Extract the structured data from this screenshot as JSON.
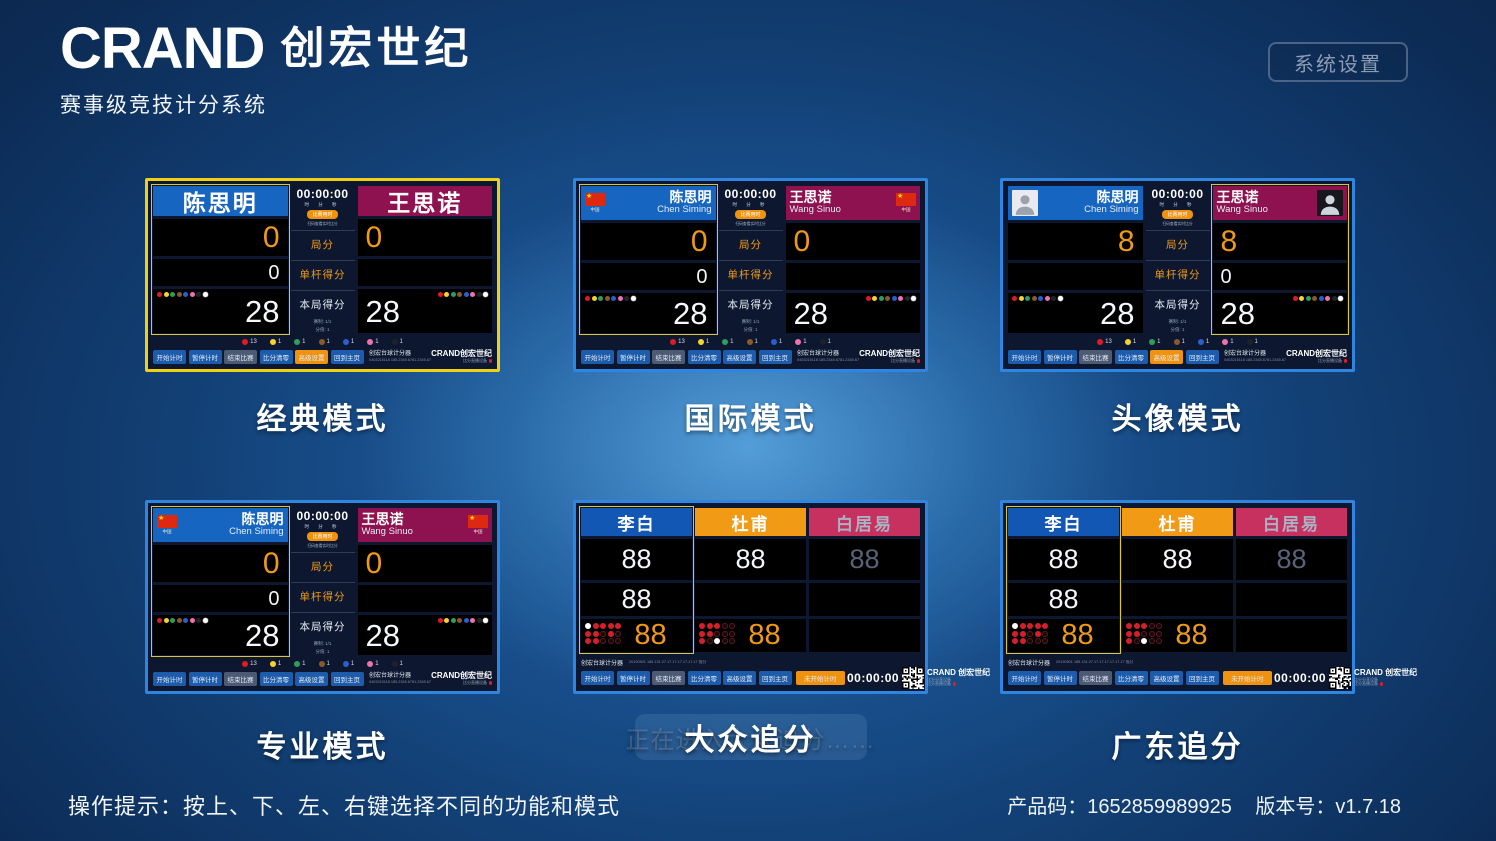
{
  "header": {
    "brand_en": "CRAND",
    "brand_cn": "创宏世纪",
    "subtitle": "赛事级竞技计分系统",
    "settings_button": "系统设置"
  },
  "footer": {
    "hint": "操作提示：按上、下、左、右键选择不同的功能和模式",
    "product_code": "产品码：1652859989925",
    "version": "版本号：v1.7.18"
  },
  "colors": {
    "accent_yellow": "#efd012",
    "accent_blue": "#2e86e0",
    "header_blue": "#1357b5",
    "header_crimson": "#8e1150",
    "header_orange": "#f09a16",
    "header_pink": "#c7315f",
    "score_orange": "#ef9a16",
    "button_blue": "#1d5cab",
    "button_grey": "#4d5a74",
    "button_highlight": "#ef9210"
  },
  "scoreboard_buttons": [
    "开始计时",
    "暂停计时",
    "结束比赛",
    "比分清零",
    "高级设置",
    "回到主页"
  ],
  "mini_balls": [
    "#e01b24",
    "#f6d32d",
    "#2ca05a",
    "#8a5a2b",
    "#2a5fd0",
    "#ef72b0",
    "#23232a",
    "#ffffff"
  ],
  "ball_counts": [
    {
      "color": "#e01b24",
      "count": "13"
    },
    {
      "color": "#f6d32d",
      "count": "1"
    },
    {
      "color": "#2f9e5c",
      "count": "1"
    },
    {
      "color": "#8a5a2b",
      "count": "1"
    },
    {
      "color": "#2a5fd0",
      "count": "1"
    },
    {
      "color": "#ef72b0",
      "count": "1"
    },
    {
      "color": "#202027",
      "count": "1"
    }
  ],
  "duel_center": {
    "timer": "00:00:00",
    "units": "时 分 秒",
    "pill": "比赛用时",
    "qr_note": "扫码查看实时比分",
    "rows": [
      "局分",
      "单杆得分",
      "本局得分"
    ],
    "note1": "赛制: 1/1",
    "note2": "分值: 1"
  },
  "duel_footer": {
    "brand_center": "创宏台球计分器",
    "brand_center_sub": "0403215118 185.2345.6781.2345.6785",
    "brand_right": "CRAND创宏世纪",
    "brand_right_sub": "比分直播设备"
  },
  "race_footer": {
    "left": "创宏台球计分器",
    "left_sub": "20190501 185.131.27.17.17.17.17.17.17 报分",
    "status_button": "未开始计时",
    "timer": "00:00:00",
    "brand": "CRAND 创宏世纪",
    "brand_sub1": "比分分享设备",
    "brand_sub2": "比分直播设备"
  },
  "cards": [
    {
      "id": "classic",
      "label": "经典模式",
      "type": "duel",
      "variant": "classic",
      "border": "yellow",
      "active": 0,
      "highlight_index": 4,
      "players": [
        {
          "name": "陈思明",
          "name_en": "",
          "country": "",
          "header": "#1665c0",
          "frames": "0",
          "single": "0",
          "score": "28"
        },
        {
          "name": "王思诺",
          "name_en": "",
          "country": "",
          "header": "#8e1150",
          "frames": "0",
          "single": "",
          "score": "28"
        }
      ]
    },
    {
      "id": "international",
      "label": "国际模式",
      "type": "duel",
      "variant": "flags",
      "border": "blue",
      "active": 0,
      "highlight_index": -1,
      "players": [
        {
          "name": "陈思明",
          "name_en": "Chen Siming",
          "country": "中国",
          "header": "#1665c0",
          "frames": "0",
          "single": "0",
          "score": "28"
        },
        {
          "name": "王思诺",
          "name_en": "Wang Sinuo",
          "country": "中国",
          "header": "#8e1150",
          "frames": "0",
          "single": "",
          "score": "28"
        }
      ]
    },
    {
      "id": "avatar",
      "label": "头像模式",
      "type": "duel",
      "variant": "avatars",
      "border": "blue",
      "active": 1,
      "highlight_index": 4,
      "players": [
        {
          "name": "陈思明",
          "name_en": "Chen Siming",
          "country": "",
          "header": "#1665c0",
          "frames": "8",
          "single": "",
          "score": "28",
          "avatar": "light"
        },
        {
          "name": "王思诺",
          "name_en": "Wang Sinuo",
          "country": "",
          "header": "#8e1150",
          "frames": "8",
          "single": "0",
          "score": "28",
          "avatar": "dark"
        }
      ]
    },
    {
      "id": "professional",
      "label": "专业模式",
      "type": "duel",
      "variant": "flags",
      "border": "blue",
      "active": 0,
      "highlight_index": -1,
      "players": [
        {
          "name": "陈思明",
          "name_en": "Chen Siming",
          "country": "中国",
          "header": "#1665c0",
          "frames": "0",
          "single": "0",
          "score": "28"
        },
        {
          "name": "王思诺",
          "name_en": "Wang Sinuo",
          "country": "中国",
          "header": "#8e1150",
          "frames": "0",
          "single": "",
          "score": "28"
        }
      ]
    },
    {
      "id": "mass-chase",
      "label": "大众追分",
      "type": "race",
      "border": "blue",
      "active": 0,
      "toast": "正在进入大众追分……",
      "players": [
        {
          "name": "李白",
          "header": "#1357b5",
          "dim": false,
          "r1": "88",
          "r2": "88",
          "r3": "88",
          "dots": [
            "wrrrr",
            "rrdrd",
            "rrddd"
          ]
        },
        {
          "name": "杜甫",
          "header": "#f09a16",
          "dim": false,
          "r1": "88",
          "r2": "",
          "r3": "88",
          "dots": [
            "rrrdd",
            "rrddd",
            "rdwdd"
          ]
        },
        {
          "name": "白居易",
          "header": "#c7315f",
          "dim": true,
          "r1": "88",
          "r2": "",
          "r3": "",
          "dots": null
        }
      ]
    },
    {
      "id": "guangdong-chase",
      "label": "广东追分",
      "type": "race",
      "border": "blue",
      "active": 0,
      "players": [
        {
          "name": "李白",
          "header": "#1357b5",
          "dim": false,
          "r1": "88",
          "r2": "88",
          "r3": "88",
          "dots": [
            "wrrrr",
            "rrdrd",
            "rrddd"
          ]
        },
        {
          "name": "杜甫",
          "header": "#f09a16",
          "dim": false,
          "r1": "88",
          "r2": "",
          "r3": "88",
          "dots": [
            "rrrdd",
            "rrddd",
            "rdwdd"
          ]
        },
        {
          "name": "白居易",
          "header": "#c7315f",
          "dim": true,
          "r1": "88",
          "r2": "",
          "r3": "",
          "dots": null
        }
      ]
    }
  ],
  "layout_labels": {
    "row1_y": "178",
    "row2_y": "500"
  }
}
